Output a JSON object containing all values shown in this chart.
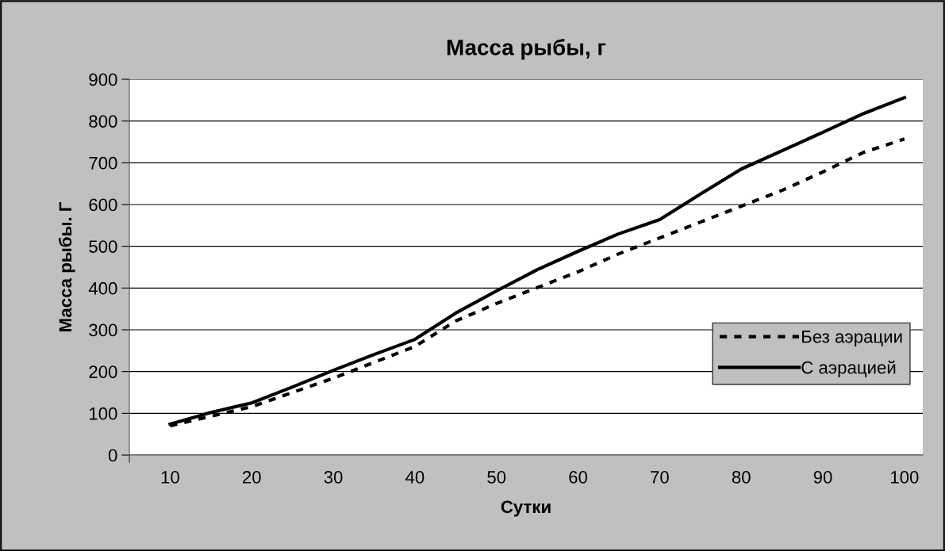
{
  "chart_data": {
    "type": "line",
    "title": "Масса рыбы, г",
    "xlabel": "Сутки",
    "ylabel": "Масса рыбы. Г",
    "categories": [
      "10",
      null,
      "20",
      null,
      "30",
      null,
      "40",
      null,
      "50",
      null,
      "60",
      null,
      "70",
      null,
      "80",
      null,
      "90",
      null,
      "100"
    ],
    "series": [
      {
        "name": "Без аэрации",
        "color": "#000000",
        "line_style": "dashed",
        "values": [
          70,
          93,
          116,
          150,
          184,
          222,
          260,
          321,
          363,
          401,
          439,
          482,
          520,
          558,
          596,
          634,
          678,
          725,
          757
        ]
      },
      {
        "name": "С аэрацией",
        "color": "#000000",
        "line_style": "solid",
        "values": [
          74,
          102,
          125,
          163,
          203,
          241,
          277,
          340,
          393,
          444,
          488,
          530,
          564,
          625,
          685,
          729,
          773,
          818,
          856
        ]
      }
    ],
    "ylim": [
      0,
      900
    ],
    "yticks": [
      0,
      100,
      200,
      300,
      400,
      500,
      600,
      700,
      800,
      900
    ],
    "grid": "y",
    "legend": "right",
    "marker": "none"
  }
}
